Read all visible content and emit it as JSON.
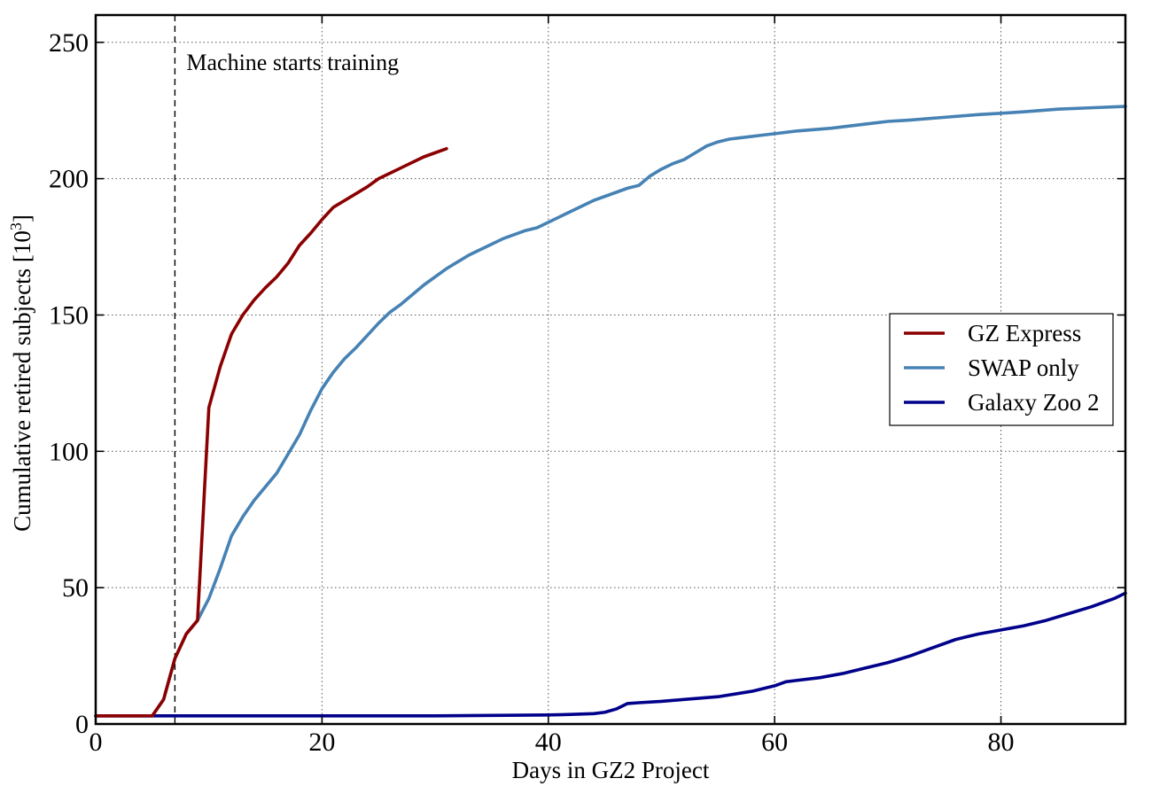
{
  "chart_data": {
    "type": "line",
    "title": "",
    "xlabel": "Days in GZ2 Project",
    "ylabel": "Cumulative retired subjects [10",
    "ylabel_superscript": "3",
    "ylabel_suffix": "]",
    "xlim": [
      0,
      91
    ],
    "ylim": [
      0,
      260
    ],
    "x_ticks": [
      0,
      20,
      40,
      60,
      80
    ],
    "y_ticks": [
      0,
      50,
      100,
      150,
      200,
      250
    ],
    "x_tick_labels": [
      "0",
      "20",
      "40",
      "60",
      "80"
    ],
    "y_tick_labels": [
      "0",
      "50",
      "100",
      "150",
      "200",
      "250"
    ],
    "grid": true,
    "legend_position": "center-right",
    "annotation": {
      "x": 7,
      "text": "Machine starts training"
    },
    "series": [
      {
        "name": "GZ Express",
        "color": "#8b0000",
        "x": [
          0,
          1,
          2,
          3,
          4,
          5,
          6,
          7,
          8,
          9,
          10,
          11,
          12,
          13,
          14,
          15,
          16,
          17,
          18,
          19,
          20,
          21,
          22,
          23,
          24,
          25,
          26,
          27,
          28,
          29,
          30,
          31
        ],
        "y": [
          3.0,
          3.0,
          3.0,
          3.0,
          3.0,
          3.0,
          9.0,
          24.0,
          33.0,
          38.0,
          116.0,
          131.0,
          143.0,
          150.0,
          155.5,
          160.0,
          164.0,
          169.0,
          175.5,
          180.0,
          185.0,
          189.5,
          192.0,
          194.5,
          197.0,
          200.0,
          202.0,
          204.0,
          206.0,
          208.0,
          209.5,
          211.0
        ]
      },
      {
        "name": "SWAP only",
        "color": "#4682b4",
        "x": [
          0,
          5,
          6,
          7,
          8,
          9,
          10,
          11,
          12,
          13,
          14,
          15,
          16,
          17,
          18,
          19,
          20,
          21,
          22,
          23,
          24,
          25,
          26,
          27,
          28,
          29,
          30,
          31,
          32,
          33,
          34,
          35,
          36,
          37,
          38,
          39,
          40,
          41,
          42,
          43,
          44,
          45,
          46,
          47,
          48,
          49,
          50,
          51,
          52,
          53,
          54,
          55,
          56,
          57,
          58,
          59,
          60,
          62,
          65,
          68,
          70,
          72,
          75,
          78,
          80,
          82,
          85,
          88,
          91
        ],
        "y": [
          3.0,
          3.0,
          9.0,
          24.0,
          33.0,
          38.0,
          46.0,
          57.0,
          69.0,
          76.0,
          82.0,
          87.0,
          92.0,
          99.0,
          106.0,
          115.0,
          123.0,
          129.0,
          134.0,
          138.0,
          142.5,
          147.0,
          151.0,
          154.0,
          157.5,
          161.0,
          164.0,
          167.0,
          169.5,
          172.0,
          174.0,
          176.0,
          178.0,
          179.5,
          181.0,
          182.0,
          184.0,
          186.0,
          188.0,
          190.0,
          192.0,
          193.5,
          195.0,
          196.5,
          197.5,
          201.0,
          203.5,
          205.5,
          207.0,
          209.5,
          212.0,
          213.5,
          214.5,
          215.0,
          215.5,
          216.0,
          216.5,
          217.5,
          218.5,
          220.0,
          221.0,
          221.5,
          222.5,
          223.5,
          224.0,
          224.5,
          225.5,
          226.0,
          226.5
        ]
      },
      {
        "name": "Galaxy Zoo 2",
        "color": "#00008b",
        "x": [
          0,
          5,
          10,
          20,
          30,
          40,
          42,
          44,
          45,
          46,
          47,
          48,
          50,
          52,
          55,
          58,
          60,
          61,
          62,
          64,
          66,
          67,
          68,
          70,
          72,
          74,
          76,
          77,
          78,
          80,
          82,
          84,
          86,
          88,
          90,
          91
        ],
        "y": [
          3.0,
          3.0,
          3.0,
          3.0,
          3.0,
          3.3,
          3.5,
          3.8,
          4.3,
          5.5,
          7.5,
          7.8,
          8.3,
          9.0,
          10.0,
          12.0,
          14.0,
          15.5,
          16.0,
          17.0,
          18.5,
          19.5,
          20.5,
          22.5,
          25.0,
          28.0,
          31.0,
          32.0,
          33.0,
          34.5,
          36.0,
          38.0,
          40.5,
          43.0,
          46.0,
          48.0
        ]
      }
    ]
  }
}
